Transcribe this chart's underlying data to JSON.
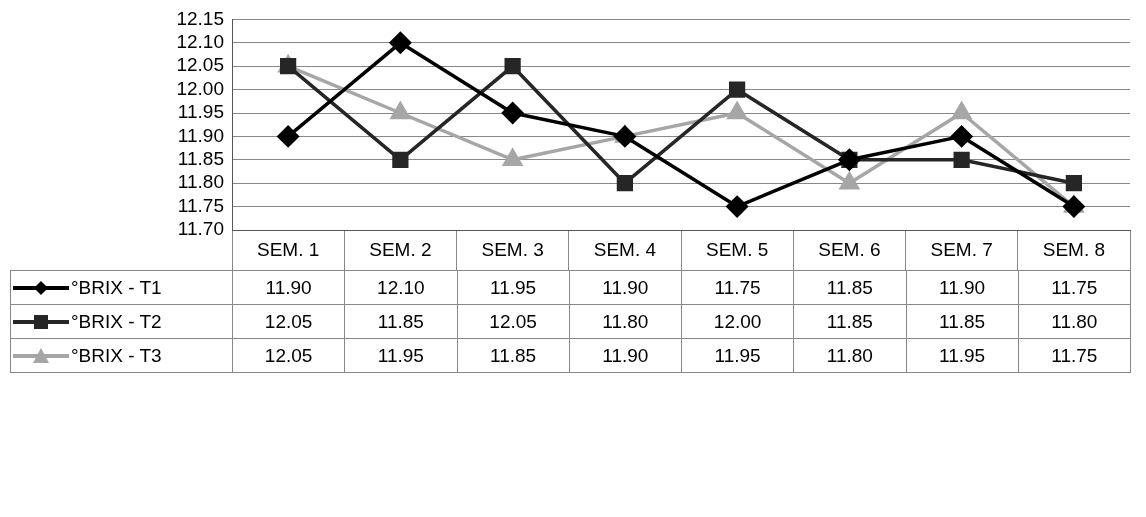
{
  "chart_data": {
    "type": "line",
    "categories": [
      "SEM. 1",
      "SEM. 2",
      "SEM. 3",
      "SEM. 4",
      "SEM. 5",
      "SEM. 6",
      "SEM. 7",
      "SEM. 8"
    ],
    "series": [
      {
        "name": "°BRIX - T1",
        "color": "#000000",
        "marker": "diamond",
        "values": [
          11.9,
          12.1,
          11.95,
          11.9,
          11.75,
          11.85,
          11.9,
          11.75
        ],
        "value_labels": [
          "11.90",
          "12.10",
          "11.95",
          "11.90",
          "11.75",
          "11.85",
          "11.90",
          "11.75"
        ]
      },
      {
        "name": "°BRIX - T2",
        "color": "#262626",
        "marker": "square",
        "values": [
          12.05,
          11.85,
          12.05,
          11.8,
          12.0,
          11.85,
          11.85,
          11.8
        ],
        "value_labels": [
          "12.05",
          "11.85",
          "12.05",
          "11.80",
          "12.00",
          "11.85",
          "11.85",
          "11.80"
        ]
      },
      {
        "name": "°BRIX - T3",
        "color": "#a6a6a6",
        "marker": "triangle",
        "values": [
          12.05,
          11.95,
          11.85,
          11.9,
          11.95,
          11.8,
          11.95,
          11.75
        ],
        "value_labels": [
          "12.05",
          "11.95",
          "11.85",
          "11.90",
          "11.95",
          "11.80",
          "11.95",
          "11.75"
        ]
      }
    ],
    "ylim": [
      11.7,
      12.15
    ],
    "yticks": [
      {
        "value": 11.7,
        "label": "11.70"
      },
      {
        "value": 11.75,
        "label": "11.75"
      },
      {
        "value": 11.8,
        "label": "11.80"
      },
      {
        "value": 11.85,
        "label": "11.85"
      },
      {
        "value": 11.9,
        "label": "11.90"
      },
      {
        "value": 11.95,
        "label": "11.95"
      },
      {
        "value": 12.0,
        "label": "12.00"
      },
      {
        "value": 12.05,
        "label": "12.05"
      },
      {
        "value": 12.1,
        "label": "12.10"
      },
      {
        "value": 12.15,
        "label": "12.15"
      }
    ],
    "grid": "y",
    "legend": "bottom left",
    "line_style": "solid"
  }
}
